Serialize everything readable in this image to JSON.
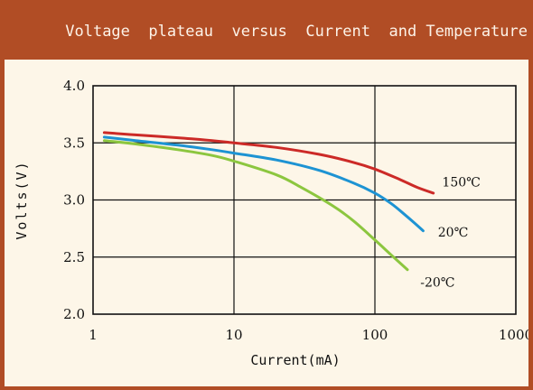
{
  "title": "Voltage  plateau  versus  Current  and Temperature",
  "chart_data": {
    "type": "line",
    "title": "Voltage  plateau  versus  Current  and Temperature",
    "xlabel": "Current(mA)",
    "ylabel": "Volts(V)",
    "xscale": "log",
    "xlim": [
      1,
      1000
    ],
    "ylim": [
      2.0,
      4.0
    ],
    "xticks": [
      1,
      10,
      100,
      1000
    ],
    "xtick_labels": [
      "1",
      "10",
      "100",
      "1000"
    ],
    "yticks": [
      2.0,
      2.5,
      3.0,
      3.5,
      4.0
    ],
    "ytick_labels": [
      "2.0",
      "2.5",
      "3.0",
      "3.5",
      "4.0"
    ],
    "grid": true,
    "series": [
      {
        "name": "150℃",
        "color": "#cc2a27",
        "x": [
          1.2,
          2,
          4,
          7,
          10,
          20,
          40,
          70,
          100,
          150,
          200,
          260
        ],
        "y": [
          3.59,
          3.57,
          3.545,
          3.52,
          3.5,
          3.46,
          3.4,
          3.33,
          3.27,
          3.18,
          3.11,
          3.06
        ]
      },
      {
        "name": "20℃",
        "color": "#1d93d3",
        "x": [
          1.2,
          2,
          4,
          7,
          10,
          20,
          40,
          70,
          100,
          130,
          160,
          190,
          220
        ],
        "y": [
          3.55,
          3.52,
          3.48,
          3.44,
          3.41,
          3.35,
          3.26,
          3.15,
          3.06,
          2.97,
          2.88,
          2.8,
          2.73
        ]
      },
      {
        "name": "-20℃",
        "color": "#8cc63f",
        "x": [
          1.2,
          2,
          4,
          7,
          10,
          20,
          30,
          50,
          70,
          100,
          130,
          170
        ],
        "y": [
          3.52,
          3.49,
          3.44,
          3.39,
          3.34,
          3.22,
          3.11,
          2.95,
          2.82,
          2.65,
          2.52,
          2.39
        ]
      }
    ],
    "series_labels": [
      {
        "text": "150℃",
        "x": 300,
        "y": 3.12
      },
      {
        "text": "20℃",
        "x": 280,
        "y": 2.68
      },
      {
        "text": "-20℃",
        "x": 210,
        "y": 2.24
      }
    ]
  }
}
